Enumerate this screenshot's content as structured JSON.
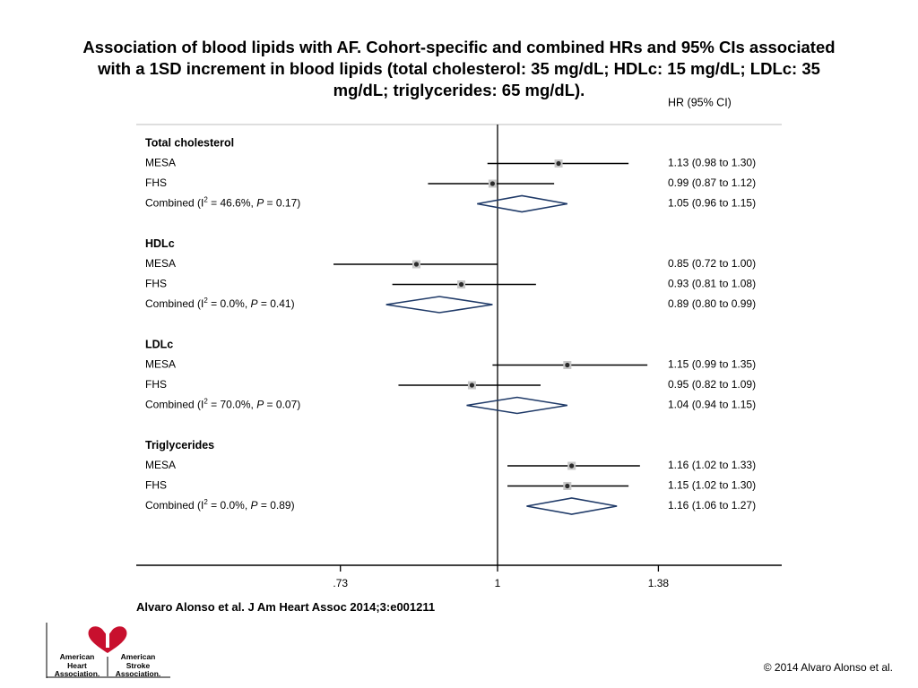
{
  "title_lines": [
    "Association of blood lipids with AF. Cohort-specific and combined HRs and 95% CIs associated",
    "with a 1SD increment in blood lipids (total cholesterol: 35 mg/dL; HDLc: 15 mg/dL; LDLc: 35",
    "mg/dL; triglycerides: 65 mg/dL)."
  ],
  "citation": "Alvaro Alonso et al. J Am Heart Assoc 2014;3:e001211",
  "copyright": "© 2014 Alvaro Alonso et al.",
  "logo": {
    "left_words": [
      "American",
      "Heart",
      "Association."
    ],
    "right_words": [
      "American",
      "Stroke",
      "Association."
    ],
    "color": "#c8102e"
  },
  "colors": {
    "diamond": "#1f3a68",
    "point_fill": "#2b2b2b",
    "point_halo": "#c8c8c8",
    "line": "#000000"
  },
  "chart_data": {
    "type": "forest",
    "column_header": "HR (95% CI)",
    "x_scale": "log",
    "reference_line": 1,
    "x_ticks": [
      {
        "value": 0.73,
        "label": ".73"
      },
      {
        "value": 1,
        "label": "1"
      },
      {
        "value": 1.38,
        "label": "1.38"
      }
    ],
    "groups": [
      {
        "name": "Total cholesterol",
        "rows": [
          {
            "label": "MESA",
            "hr": 1.13,
            "lo": 0.98,
            "hi": 1.3,
            "ci_text": "1.13 (0.98 to 1.30)"
          },
          {
            "label": "FHS",
            "hr": 0.99,
            "lo": 0.87,
            "hi": 1.12,
            "ci_text": "0.99 (0.87 to 1.12)"
          },
          {
            "label": "Combined",
            "i2": "46.6%",
            "p": "0.17",
            "combined": true,
            "hr": 1.05,
            "lo": 0.96,
            "hi": 1.15,
            "ci_text": "1.05 (0.96 to 1.15)"
          }
        ]
      },
      {
        "name": "HDLc",
        "rows": [
          {
            "label": "MESA",
            "hr": 0.85,
            "lo": 0.72,
            "hi": 1.0,
            "ci_text": "0.85 (0.72 to 1.00)"
          },
          {
            "label": "FHS",
            "hr": 0.93,
            "lo": 0.81,
            "hi": 1.08,
            "ci_text": "0.93 (0.81 to 1.08)"
          },
          {
            "label": "Combined",
            "i2": "0.0%",
            "p": "0.41",
            "combined": true,
            "hr": 0.89,
            "lo": 0.8,
            "hi": 0.99,
            "ci_text": "0.89 (0.80 to 0.99)"
          }
        ]
      },
      {
        "name": "LDLc",
        "rows": [
          {
            "label": "MESA",
            "hr": 1.15,
            "lo": 0.99,
            "hi": 1.35,
            "ci_text": "1.15 (0.99 to 1.35)"
          },
          {
            "label": "FHS",
            "hr": 0.95,
            "lo": 0.82,
            "hi": 1.09,
            "ci_text": "0.95 (0.82 to 1.09)"
          },
          {
            "label": "Combined",
            "i2": "70.0%",
            "p": "0.07",
            "combined": true,
            "hr": 1.04,
            "lo": 0.94,
            "hi": 1.15,
            "ci_text": "1.04 (0.94 to 1.15)"
          }
        ]
      },
      {
        "name": "Triglycerides",
        "rows": [
          {
            "label": "MESA",
            "hr": 1.16,
            "lo": 1.02,
            "hi": 1.33,
            "ci_text": "1.16 (1.02 to 1.33)"
          },
          {
            "label": "FHS",
            "hr": 1.15,
            "lo": 1.02,
            "hi": 1.3,
            "ci_text": "1.15 (1.02 to 1.30)"
          },
          {
            "label": "Combined",
            "i2": "0.0%",
            "p": "0.89",
            "combined": true,
            "hr": 1.16,
            "lo": 1.06,
            "hi": 1.27,
            "ci_text": "1.16 (1.06 to 1.27)"
          }
        ]
      }
    ]
  }
}
